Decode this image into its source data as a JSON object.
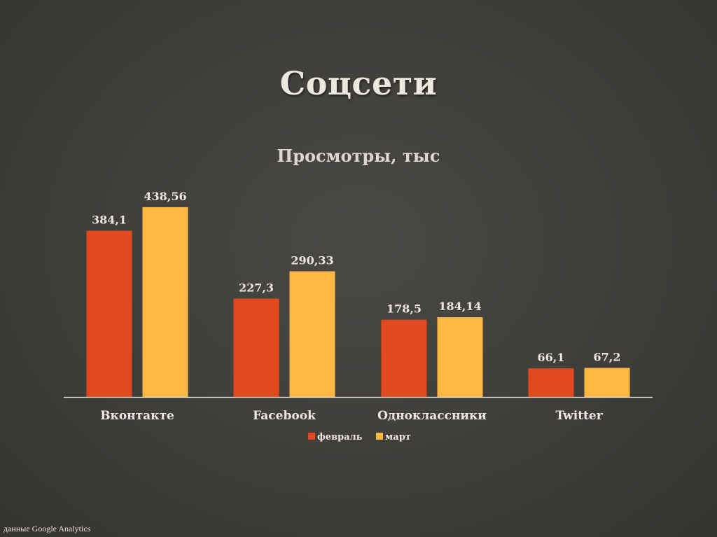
{
  "slide": {
    "title": "Соцсети",
    "footnote_prefix": "данные",
    "footnote_source": "Google Analytics"
  },
  "chart_data": {
    "type": "bar",
    "title": "Просмотры, тыс",
    "categories": [
      "Вконтакте",
      "Facebook",
      "Одноклассники",
      "Twitter"
    ],
    "series": [
      {
        "name": "февраль",
        "values": [
          384.1,
          227.3,
          178.5,
          66.1
        ],
        "labels": [
          "384,1",
          "227,3",
          "178,5",
          "66,1"
        ],
        "color": "#e2491f"
      },
      {
        "name": "март",
        "values": [
          438.56,
          290.33,
          184.14,
          67.2
        ],
        "labels": [
          "438,56",
          "290,33",
          "184,14",
          "67,2"
        ],
        "color": "#fdb844"
      }
    ],
    "xlabel": "",
    "ylabel": "",
    "grid": false,
    "legend": "bottom",
    "colors": {
      "axis": "#e8e4dc",
      "label_text": "#ece8e0"
    }
  }
}
